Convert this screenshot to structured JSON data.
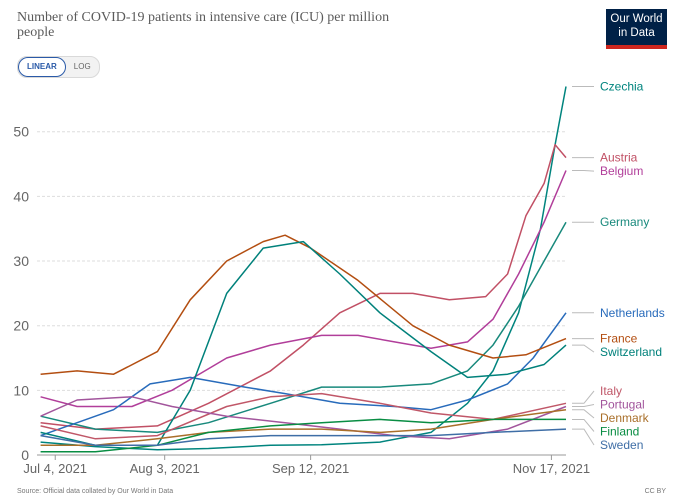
{
  "title": "Number of COVID-19 patients in intensive care (ICU) per million people",
  "logo": {
    "line1": "Our World",
    "line2": "in Data"
  },
  "scale_toggle": {
    "linear": "LINEAR",
    "log": "LOG",
    "selected": "LINEAR"
  },
  "source": "Source: Official data collated by Our World in Data",
  "license": "CC BY",
  "chart_data": {
    "type": "line",
    "x_domain": [
      "2021-06-29",
      "2021-11-21"
    ],
    "ylim": [
      0,
      58
    ],
    "yticks": [
      0,
      10,
      20,
      30,
      40,
      50
    ],
    "grid": true,
    "xticks": [
      {
        "date": "2021-07-04",
        "label": "Jul 4, 2021"
      },
      {
        "date": "2021-08-03",
        "label": "Aug 3, 2021"
      },
      {
        "date": "2021-09-12",
        "label": "Sep 12, 2021"
      },
      {
        "date": "2021-11-17",
        "label": "Nov 17, 2021"
      }
    ],
    "series": [
      {
        "name": "Czechia",
        "color": "#00847e",
        "values": [
          [
            "2021-06-30",
            2.0
          ],
          [
            "2021-07-15",
            1.3
          ],
          [
            "2021-08-01",
            0.8
          ],
          [
            "2021-08-15",
            1.0
          ],
          [
            "2021-09-01",
            1.5
          ],
          [
            "2021-09-15",
            1.6
          ],
          [
            "2021-10-01",
            2.0
          ],
          [
            "2021-10-15",
            3.5
          ],
          [
            "2021-10-25",
            8.0
          ],
          [
            "2021-11-01",
            13.0
          ],
          [
            "2021-11-08",
            22.0
          ],
          [
            "2021-11-14",
            35.0
          ],
          [
            "2021-11-18",
            48.0
          ],
          [
            "2021-11-21",
            57.0
          ]
        ]
      },
      {
        "name": "Austria",
        "color": "#c15065",
        "values": [
          [
            "2021-06-30",
            5.0
          ],
          [
            "2021-07-15",
            4.0
          ],
          [
            "2021-08-01",
            4.5
          ],
          [
            "2021-08-15",
            8.0
          ],
          [
            "2021-09-01",
            13.0
          ],
          [
            "2021-09-10",
            17.0
          ],
          [
            "2021-09-20",
            22.0
          ],
          [
            "2021-10-01",
            25.0
          ],
          [
            "2021-10-10",
            25.0
          ],
          [
            "2021-10-20",
            24.0
          ],
          [
            "2021-10-30",
            24.5
          ],
          [
            "2021-11-05",
            28.0
          ],
          [
            "2021-11-10",
            37.0
          ],
          [
            "2021-11-15",
            42.0
          ],
          [
            "2021-11-18",
            48.0
          ],
          [
            "2021-11-21",
            46.0
          ]
        ]
      },
      {
        "name": "Belgium",
        "color": "#b13e9a",
        "values": [
          [
            "2021-06-30",
            9.0
          ],
          [
            "2021-07-10",
            7.5
          ],
          [
            "2021-07-25",
            7.5
          ],
          [
            "2021-08-05",
            10.0
          ],
          [
            "2021-08-20",
            15.0
          ],
          [
            "2021-09-01",
            17.0
          ],
          [
            "2021-09-15",
            18.5
          ],
          [
            "2021-09-25",
            18.5
          ],
          [
            "2021-10-05",
            17.5
          ],
          [
            "2021-10-15",
            16.5
          ],
          [
            "2021-10-25",
            17.5
          ],
          [
            "2021-11-01",
            21.0
          ],
          [
            "2021-11-08",
            28.0
          ],
          [
            "2021-11-15",
            36.0
          ],
          [
            "2021-11-21",
            44.0
          ]
        ]
      },
      {
        "name": "Germany",
        "color": "#18897c",
        "values": [
          [
            "2021-06-30",
            6.0
          ],
          [
            "2021-07-15",
            4.0
          ],
          [
            "2021-08-01",
            3.5
          ],
          [
            "2021-08-15",
            5.0
          ],
          [
            "2021-09-01",
            8.0
          ],
          [
            "2021-09-15",
            10.5
          ],
          [
            "2021-10-01",
            10.5
          ],
          [
            "2021-10-15",
            11.0
          ],
          [
            "2021-10-25",
            13.0
          ],
          [
            "2021-11-01",
            17.0
          ],
          [
            "2021-11-08",
            23.0
          ],
          [
            "2021-11-15",
            30.0
          ],
          [
            "2021-11-21",
            36.0
          ]
        ]
      },
      {
        "name": "Netherlands",
        "color": "#286bbb",
        "values": [
          [
            "2021-06-30",
            3.0
          ],
          [
            "2021-07-10",
            5.0
          ],
          [
            "2021-07-20",
            7.0
          ],
          [
            "2021-07-30",
            11.0
          ],
          [
            "2021-08-10",
            12.0
          ],
          [
            "2021-08-25",
            10.5
          ],
          [
            "2021-09-05",
            9.5
          ],
          [
            "2021-09-20",
            8.0
          ],
          [
            "2021-10-05",
            7.5
          ],
          [
            "2021-10-15",
            7.0
          ],
          [
            "2021-10-25",
            8.5
          ],
          [
            "2021-11-05",
            11.0
          ],
          [
            "2021-11-12",
            15.0
          ],
          [
            "2021-11-21",
            22.0
          ]
        ]
      },
      {
        "name": "France",
        "color": "#b34e11",
        "values": [
          [
            "2021-06-30",
            12.5
          ],
          [
            "2021-07-10",
            13.0
          ],
          [
            "2021-07-20",
            12.5
          ],
          [
            "2021-08-01",
            16.0
          ],
          [
            "2021-08-10",
            24.0
          ],
          [
            "2021-08-20",
            30.0
          ],
          [
            "2021-08-30",
            33.0
          ],
          [
            "2021-09-05",
            34.0
          ],
          [
            "2021-09-12",
            32.0
          ],
          [
            "2021-09-25",
            27.0
          ],
          [
            "2021-10-10",
            20.0
          ],
          [
            "2021-10-20",
            17.0
          ],
          [
            "2021-11-01",
            15.0
          ],
          [
            "2021-11-10",
            15.5
          ],
          [
            "2021-11-21",
            18.0
          ]
        ]
      },
      {
        "name": "Switzerland",
        "color": "#00817b",
        "values": [
          [
            "2021-06-30",
            3.5
          ],
          [
            "2021-07-15",
            1.5
          ],
          [
            "2021-08-01",
            1.5
          ],
          [
            "2021-08-10",
            10.0
          ],
          [
            "2021-08-20",
            25.0
          ],
          [
            "2021-08-30",
            32.0
          ],
          [
            "2021-09-10",
            33.0
          ],
          [
            "2021-09-20",
            28.0
          ],
          [
            "2021-10-01",
            22.0
          ],
          [
            "2021-10-15",
            16.0
          ],
          [
            "2021-10-25",
            12.0
          ],
          [
            "2021-11-05",
            12.5
          ],
          [
            "2021-11-15",
            14.0
          ],
          [
            "2021-11-21",
            17.0
          ]
        ]
      },
      {
        "name": "Italy",
        "color": "#c05768",
        "values": [
          [
            "2021-06-30",
            4.5
          ],
          [
            "2021-07-15",
            2.5
          ],
          [
            "2021-08-01",
            3.0
          ],
          [
            "2021-08-20",
            7.5
          ],
          [
            "2021-09-01",
            9.0
          ],
          [
            "2021-09-15",
            9.5
          ],
          [
            "2021-10-01",
            8.0
          ],
          [
            "2021-10-15",
            6.5
          ],
          [
            "2021-11-01",
            5.5
          ],
          [
            "2021-11-21",
            8.0
          ]
        ]
      },
      {
        "name": "Portugal",
        "color": "#a2559c",
        "values": [
          [
            "2021-06-30",
            6.0
          ],
          [
            "2021-07-10",
            8.5
          ],
          [
            "2021-07-25",
            9.0
          ],
          [
            "2021-08-05",
            7.5
          ],
          [
            "2021-08-20",
            6.0
          ],
          [
            "2021-09-05",
            5.0
          ],
          [
            "2021-09-20",
            4.0
          ],
          [
            "2021-10-05",
            3.0
          ],
          [
            "2021-10-20",
            2.5
          ],
          [
            "2021-11-05",
            4.0
          ],
          [
            "2021-11-21",
            7.5
          ]
        ]
      },
      {
        "name": "Denmark",
        "color": "#a96f2a",
        "values": [
          [
            "2021-06-30",
            1.5
          ],
          [
            "2021-07-15",
            1.5
          ],
          [
            "2021-08-01",
            2.5
          ],
          [
            "2021-08-15",
            3.5
          ],
          [
            "2021-09-01",
            4.0
          ],
          [
            "2021-09-15",
            4.0
          ],
          [
            "2021-10-01",
            3.5
          ],
          [
            "2021-10-15",
            4.0
          ],
          [
            "2021-11-01",
            5.5
          ],
          [
            "2021-11-21",
            7.0
          ]
        ]
      },
      {
        "name": "Finland",
        "color": "#098d43",
        "values": [
          [
            "2021-06-30",
            0.5
          ],
          [
            "2021-07-15",
            0.5
          ],
          [
            "2021-08-01",
            1.5
          ],
          [
            "2021-08-15",
            3.5
          ],
          [
            "2021-09-01",
            4.5
          ],
          [
            "2021-09-15",
            5.0
          ],
          [
            "2021-10-01",
            5.5
          ],
          [
            "2021-10-15",
            5.0
          ],
          [
            "2021-11-01",
            5.5
          ],
          [
            "2021-11-21",
            5.5
          ]
        ]
      },
      {
        "name": "Sweden",
        "color": "#3f6ea6",
        "values": [
          [
            "2021-06-30",
            3.0
          ],
          [
            "2021-07-15",
            1.5
          ],
          [
            "2021-08-01",
            1.5
          ],
          [
            "2021-08-15",
            2.5
          ],
          [
            "2021-09-01",
            3.0
          ],
          [
            "2021-09-15",
            3.0
          ],
          [
            "2021-10-01",
            3.0
          ],
          [
            "2021-10-15",
            3.0
          ],
          [
            "2021-11-01",
            3.5
          ],
          [
            "2021-11-21",
            4.0
          ]
        ]
      }
    ]
  }
}
